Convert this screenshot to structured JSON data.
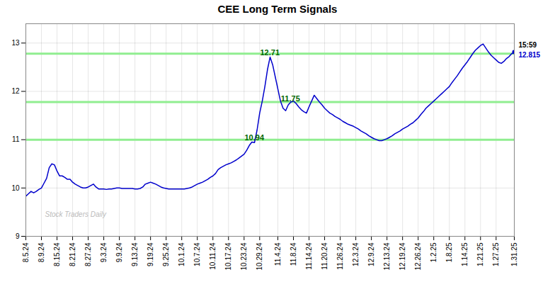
{
  "chart_data": {
    "type": "line",
    "title": "CEE Long Term Signals",
    "categories": [
      "8.5.24",
      null,
      null,
      null,
      null,
      null,
      "8.9.24",
      null,
      null,
      null,
      null,
      null,
      "8.15.24",
      null,
      null,
      null,
      null,
      null,
      "8.21.24",
      null,
      null,
      null,
      null,
      null,
      "8.27.24",
      null,
      null,
      null,
      null,
      null,
      "9.3.24",
      null,
      null,
      null,
      null,
      null,
      "9.9.24",
      null,
      null,
      null,
      null,
      null,
      "9.13.24",
      null,
      null,
      null,
      null,
      null,
      "9.19.24",
      null,
      null,
      null,
      null,
      null,
      "9.25.24",
      null,
      null,
      null,
      null,
      null,
      "10.1.24",
      null,
      null,
      null,
      null,
      null,
      "10.7.24",
      null,
      null,
      null,
      null,
      null,
      "10.11.24",
      null,
      null,
      null,
      null,
      null,
      "10.17.24",
      null,
      null,
      null,
      null,
      null,
      "10.23.24",
      null,
      null,
      null,
      null,
      null,
      "10.29.24",
      null,
      null,
      null,
      null,
      null,
      null,
      "11.4.24",
      null,
      null,
      null,
      null,
      null,
      "11.8.24",
      null,
      null,
      null,
      null,
      null,
      "11.14.24",
      null,
      null,
      null,
      null,
      null,
      "11.20.24",
      null,
      null,
      null,
      null,
      null,
      "11.26.24",
      null,
      null,
      null,
      null,
      null,
      "12.3.24",
      null,
      null,
      null,
      null,
      null,
      "12.9.24",
      null,
      null,
      null,
      null,
      null,
      "12.13.24",
      null,
      null,
      null,
      null,
      null,
      "12.19.24",
      null,
      null,
      null,
      null,
      null,
      "12.26.24",
      null,
      null,
      null,
      null,
      null,
      "1.2.25",
      null,
      null,
      null,
      null,
      null,
      "1.8.25",
      null,
      null,
      null,
      null,
      null,
      "1.14.25",
      null,
      null,
      null,
      null,
      null,
      "1.21.25",
      null,
      null,
      null,
      null,
      null,
      "1.27.25",
      null,
      null,
      null,
      null,
      null,
      null,
      "1.31.25"
    ],
    "values": [
      9.83,
      9.88,
      9.93,
      9.9,
      9.93,
      9.97,
      10.0,
      10.1,
      10.2,
      10.42,
      10.5,
      10.48,
      10.35,
      10.25,
      10.25,
      10.22,
      10.18,
      10.18,
      10.12,
      10.08,
      10.05,
      10.02,
      10.0,
      10.0,
      10.02,
      10.05,
      10.08,
      10.02,
      9.98,
      9.98,
      9.98,
      9.97,
      9.98,
      9.98,
      9.99,
      10.0,
      10.0,
      9.99,
      9.99,
      9.99,
      9.99,
      9.99,
      9.98,
      9.98,
      9.99,
      10.02,
      10.08,
      10.1,
      10.12,
      10.1,
      10.08,
      10.05,
      10.02,
      10.0,
      9.99,
      9.98,
      9.98,
      9.98,
      9.98,
      9.98,
      9.98,
      9.98,
      9.99,
      10.0,
      10.02,
      10.05,
      10.08,
      10.1,
      10.12,
      10.15,
      10.18,
      10.22,
      10.25,
      10.3,
      10.38,
      10.42,
      10.45,
      10.48,
      10.5,
      10.52,
      10.55,
      10.58,
      10.62,
      10.66,
      10.7,
      10.78,
      10.88,
      10.95,
      10.94,
      11.2,
      11.55,
      11.8,
      12.1,
      12.45,
      12.71,
      12.55,
      12.3,
      12.05,
      11.8,
      11.65,
      11.6,
      11.72,
      11.78,
      11.8,
      11.75,
      11.68,
      11.62,
      11.58,
      11.55,
      11.68,
      11.8,
      11.92,
      11.85,
      11.78,
      11.72,
      11.65,
      11.6,
      11.55,
      11.52,
      11.48,
      11.45,
      11.42,
      11.38,
      11.35,
      11.32,
      11.3,
      11.28,
      11.25,
      11.22,
      11.18,
      11.15,
      11.12,
      11.08,
      11.05,
      11.02,
      11.0,
      10.98,
      10.98,
      11.0,
      11.02,
      11.05,
      11.08,
      11.12,
      11.15,
      11.18,
      11.22,
      11.25,
      11.28,
      11.32,
      11.35,
      11.4,
      11.45,
      11.52,
      11.58,
      11.65,
      11.7,
      11.75,
      11.8,
      11.85,
      11.9,
      11.95,
      12.0,
      12.05,
      12.1,
      12.18,
      12.25,
      12.32,
      12.4,
      12.48,
      12.55,
      12.62,
      12.7,
      12.78,
      12.85,
      12.9,
      12.95,
      12.98,
      12.9,
      12.82,
      12.75,
      12.7,
      12.65,
      12.6,
      12.58,
      12.62,
      12.68,
      12.72,
      12.78,
      12.815
    ],
    "color": "#0000cc",
    "ylim": [
      9,
      13.4
    ],
    "yticks": [
      9,
      10,
      11,
      12,
      13
    ],
    "grid": true,
    "hlines": [
      {
        "y": 12.78,
        "color": "#90EE90"
      },
      {
        "y": 11.78,
        "color": "#90EE90"
      },
      {
        "y": 11.0,
        "color": "#90EE90"
      }
    ],
    "annotations": [
      {
        "text": "12.71",
        "x": 94,
        "y": 12.71,
        "color": "#006600"
      },
      {
        "text": "11.75",
        "x": 102,
        "y": 11.75,
        "color": "#006600"
      },
      {
        "text": "10.94",
        "x": 88,
        "y": 10.94,
        "color": "#006600"
      },
      {
        "text": "15:59",
        "x": 188,
        "y": 12.815,
        "color": "#000000"
      },
      {
        "text": "12.815",
        "x": 188,
        "y": 12.815,
        "color": "#0000cc"
      },
      {
        "text": "Stock Traders Daily",
        "color": "#bbbbbb"
      }
    ]
  }
}
